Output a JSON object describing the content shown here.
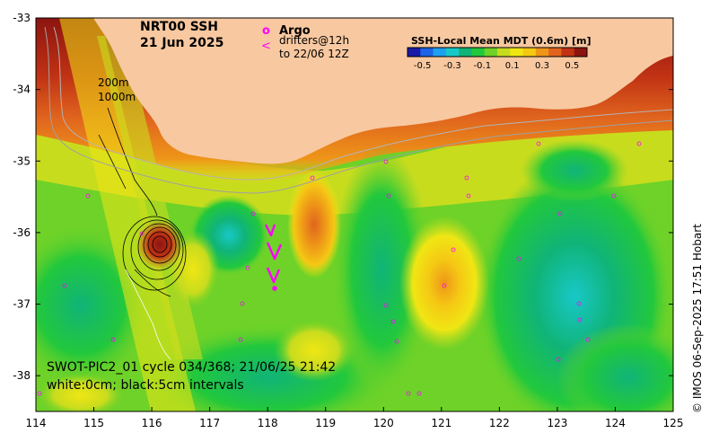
{
  "title": {
    "product": "NRT00 SSH",
    "date": "21 Jun 2025"
  },
  "legend": {
    "argo_symbol": "o",
    "argo_label": "Argo",
    "drifter_symbol": "<",
    "drifter_label_1": "drifters@12h",
    "drifter_label_2": "to 22/06 12Z",
    "contour_200": "200m",
    "contour_1000": "1000m"
  },
  "colorbar": {
    "title": "SSH-Local Mean MDT (0.6m) [m]",
    "ticks": [
      "-0.5",
      "-0.3",
      "-0.1",
      "0.1",
      "0.3",
      "0.5"
    ],
    "range": [
      -0.6,
      0.6
    ],
    "colors": [
      "#1a1aa8",
      "#1e64e6",
      "#1ea0f0",
      "#18c8c8",
      "#10b478",
      "#22c83c",
      "#6ed228",
      "#c8dc1e",
      "#f0e614",
      "#f5c814",
      "#ee9618",
      "#e0641e",
      "#c03214",
      "#8c1410"
    ]
  },
  "axes": {
    "x_ticks": [
      "114",
      "115",
      "116",
      "117",
      "118",
      "119",
      "120",
      "121",
      "122",
      "123",
      "124",
      "125"
    ],
    "y_ticks": [
      "-33",
      "-34",
      "-35",
      "-36",
      "-37",
      "-38"
    ],
    "x_range": [
      114,
      125
    ],
    "y_range": [
      -38.5,
      -33
    ]
  },
  "swot_note": {
    "line1": "SWOT-PIC2_01 cycle 034/368; 21/06/25 21:42",
    "line2": "white:0cm; black:5cm intervals"
  },
  "credit": "© IMOS 06-Sep-2025 17:51 Hobart",
  "colors": {
    "land": "#f8c8a0",
    "argo_marker": "#ff00ff",
    "drifter": "#ff00ff"
  }
}
